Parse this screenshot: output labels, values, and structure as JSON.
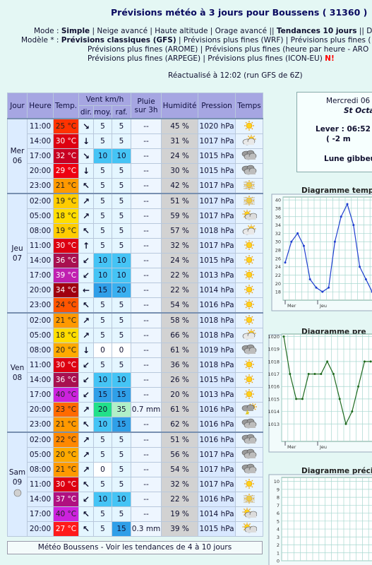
{
  "header": {
    "title": "Prévisions météo à 3 jours pour Boussens ( 31360 )",
    "mode": {
      "label": "Mode : ",
      "current": "Simple",
      "others": " | Neige avancé | Haute altitude | Orage avancé || ",
      "trend": "Tendances 10 jours",
      "rest": " || Di"
    },
    "model": {
      "label": "Modèle * : ",
      "current": "Prévisions classiques (GFS)",
      "others": " | Prévisions plus fines (WRF) | Prévisions plus fines (",
      "line2": "Prévisions plus fines (AROME) | Prévisions plus fines (heure par heure - ARO",
      "line3": "Prévisions plus fines (ARPEGE) | Prévisions plus fines (ICON-EU) ",
      "new": "N!"
    },
    "updated": "Réactualisé à 12:02 (run GFS de 6Z)"
  },
  "table": {
    "headers": {
      "day": "Jour",
      "time": "Heure",
      "temp": "Temp.",
      "wind": "Vent km/h",
      "dir": "dir.",
      "moy": "moy.",
      "raf": "raf.",
      "rain": "Pluie sur 3h",
      "hum": "Humidité",
      "pres": "Pression",
      "sky": "Temps"
    },
    "days": [
      {
        "day": "Mer",
        "date": "06",
        "rows": [
          {
            "time": "11:00",
            "temp": "25 °C",
            "dir": "↘",
            "moy": "5",
            "raf": "5",
            "rain": "--",
            "hum": "45 %",
            "pres": "1020 hPa",
            "colors": {
              "temp": "#ff3300",
              "moy": "#e4f6ff",
              "raf": "#e4f6ff"
            }
          },
          {
            "time": "14:00",
            "temp": "30 °C",
            "dir": "↓",
            "moy": "5",
            "raf": "5",
            "rain": "--",
            "hum": "31 %",
            "pres": "1017 hPa",
            "colors": {
              "temp": "#dd0011",
              "moy": "#e4f6ff",
              "raf": "#e4f6ff"
            }
          },
          {
            "time": "17:00",
            "temp": "32 °C",
            "dir": "↘",
            "moy": "10",
            "raf": "10",
            "rain": "--",
            "hum": "24 %",
            "pres": "1015 hPa",
            "colors": {
              "temp": "#c80022",
              "moy": "#45c4f5",
              "raf": "#45c4f5"
            }
          },
          {
            "time": "20:00",
            "temp": "29 °C",
            "dir": "↓",
            "moy": "5",
            "raf": "5",
            "rain": "--",
            "hum": "30 %",
            "pres": "1015 hPa",
            "colors": {
              "temp": "#ee0011",
              "moy": "#e4f6ff",
              "raf": "#e4f6ff"
            }
          },
          {
            "time": "23:00",
            "temp": "21 °C",
            "dir": "↖",
            "moy": "5",
            "raf": "5",
            "rain": "--",
            "hum": "42 %",
            "pres": "1017 hPa",
            "colors": {
              "temp": "#ff9900",
              "moy": "#e4f6ff",
              "raf": "#e4f6ff"
            }
          }
        ]
      },
      {
        "day": "Jeu",
        "date": "07",
        "rows": [
          {
            "time": "02:00",
            "temp": "19 °C",
            "dir": "↗",
            "moy": "5",
            "raf": "5",
            "rain": "--",
            "hum": "51 %",
            "pres": "1017 hPa",
            "colors": {
              "temp": "#ffcc00",
              "moy": "#e4f6ff",
              "raf": "#e4f6ff"
            }
          },
          {
            "time": "05:00",
            "temp": "18 °C",
            "dir": "↗",
            "moy": "5",
            "raf": "5",
            "rain": "--",
            "hum": "59 %",
            "pres": "1017 hPa",
            "colors": {
              "temp": "#ffdd00",
              "moy": "#e4f6ff",
              "raf": "#e4f6ff"
            }
          },
          {
            "time": "08:00",
            "temp": "19 °C",
            "dir": "↖",
            "moy": "5",
            "raf": "5",
            "rain": "--",
            "hum": "57 %",
            "pres": "1018 hPa",
            "colors": {
              "temp": "#ffcc00",
              "moy": "#e4f6ff",
              "raf": "#e4f6ff"
            }
          },
          {
            "time": "11:00",
            "temp": "30 °C",
            "dir": "↑",
            "moy": "5",
            "raf": "5",
            "rain": "--",
            "hum": "32 %",
            "pres": "1017 hPa",
            "colors": {
              "temp": "#dd0011",
              "moy": "#e4f6ff",
              "raf": "#e4f6ff"
            }
          },
          {
            "time": "14:00",
            "temp": "36 °C",
            "dir": "↙",
            "moy": "10",
            "raf": "10",
            "rain": "--",
            "hum": "24 %",
            "pres": "1015 hPa",
            "colors": {
              "temp": "#a81050",
              "moy": "#45c4f5",
              "raf": "#45c4f5"
            }
          },
          {
            "time": "17:00",
            "temp": "39 °C",
            "dir": "↙",
            "moy": "10",
            "raf": "10",
            "rain": "--",
            "hum": "22 %",
            "pres": "1013 hPa",
            "colors": {
              "temp": "#c020b0",
              "moy": "#45c4f5",
              "raf": "#45c4f5"
            }
          },
          {
            "time": "20:00",
            "temp": "34 °C",
            "dir": "←",
            "moy": "15",
            "raf": "20",
            "rain": "--",
            "hum": "22 %",
            "pres": "1014 hPa",
            "colors": {
              "temp": "#a00010",
              "moy": "#2f9fe8",
              "raf": "#3ab0f0"
            }
          },
          {
            "time": "23:00",
            "temp": "24 °C",
            "dir": "↖",
            "moy": "5",
            "raf": "5",
            "rain": "--",
            "hum": "54 %",
            "pres": "1016 hPa",
            "colors": {
              "temp": "#ff5500",
              "moy": "#e4f6ff",
              "raf": "#e4f6ff"
            }
          }
        ]
      },
      {
        "day": "Ven",
        "date": "08",
        "rows": [
          {
            "time": "02:00",
            "temp": "21 °C",
            "dir": "↗",
            "moy": "5",
            "raf": "5",
            "rain": "--",
            "hum": "58 %",
            "pres": "1018 hPa",
            "colors": {
              "temp": "#ff9900",
              "moy": "#e4f6ff",
              "raf": "#e4f6ff"
            }
          },
          {
            "time": "05:00",
            "temp": "18 °C",
            "dir": "↗",
            "moy": "5",
            "raf": "5",
            "rain": "--",
            "hum": "66 %",
            "pres": "1018 hPa",
            "colors": {
              "temp": "#ffdd00",
              "moy": "#e4f6ff",
              "raf": "#e4f6ff"
            }
          },
          {
            "time": "08:00",
            "temp": "20 °C",
            "dir": "↓",
            "moy": "0",
            "raf": "0",
            "rain": "--",
            "hum": "61 %",
            "pres": "1019 hPa",
            "colors": {
              "temp": "#ffaa00",
              "moy": "#ffffff",
              "raf": "#ffffff"
            }
          },
          {
            "time": "11:00",
            "temp": "30 °C",
            "dir": "↙",
            "moy": "5",
            "raf": "5",
            "rain": "--",
            "hum": "36 %",
            "pres": "1018 hPa",
            "colors": {
              "temp": "#dd0011",
              "moy": "#e4f6ff",
              "raf": "#e4f6ff"
            }
          },
          {
            "time": "14:00",
            "temp": "36 °C",
            "dir": "↙",
            "moy": "10",
            "raf": "10",
            "rain": "--",
            "hum": "26 %",
            "pres": "1015 hPa",
            "colors": {
              "temp": "#a81050",
              "moy": "#45c4f5",
              "raf": "#45c4f5"
            }
          },
          {
            "time": "17:00",
            "temp": "40 °C",
            "dir": "↙",
            "moy": "15",
            "raf": "15",
            "rain": "--",
            "hum": "20 %",
            "pres": "1013 hPa",
            "colors": {
              "temp": "#cc22dd",
              "moy": "#2f9fe8",
              "raf": "#2f9fe8"
            }
          },
          {
            "time": "20:00",
            "temp": "23 °C",
            "dir": "↗",
            "moy": "20",
            "raf": "35",
            "rain": "0.7 mm",
            "hum": "61 %",
            "pres": "1016 hPa",
            "colors": {
              "temp": "#ff6a00",
              "moy": "#22e08a",
              "raf": "#b0f0c8"
            }
          },
          {
            "time": "23:00",
            "temp": "21 °C",
            "dir": "↖",
            "moy": "10",
            "raf": "15",
            "rain": "--",
            "hum": "62 %",
            "pres": "1016 hPa",
            "colors": {
              "temp": "#ff9900",
              "moy": "#45c4f5",
              "raf": "#2f9fe8"
            }
          }
        ]
      },
      {
        "day": "Sam",
        "date": "09",
        "rows": [
          {
            "time": "02:00",
            "temp": "22 °C",
            "dir": "↗",
            "moy": "5",
            "raf": "5",
            "rain": "--",
            "hum": "51 %",
            "pres": "1016 hPa",
            "colors": {
              "temp": "#ff8800",
              "moy": "#e4f6ff",
              "raf": "#e4f6ff"
            }
          },
          {
            "time": "05:00",
            "temp": "20 °C",
            "dir": "↗",
            "moy": "5",
            "raf": "5",
            "rain": "--",
            "hum": "56 %",
            "pres": "1017 hPa",
            "colors": {
              "temp": "#ffaa00",
              "moy": "#e4f6ff",
              "raf": "#e4f6ff"
            }
          },
          {
            "time": "08:00",
            "temp": "21 °C",
            "dir": "↗",
            "moy": "0",
            "raf": "5",
            "rain": "--",
            "hum": "54 %",
            "pres": "1017 hPa",
            "colors": {
              "temp": "#ff9900",
              "moy": "#ffffff",
              "raf": "#e4f6ff"
            }
          },
          {
            "time": "11:00",
            "temp": "30 °C",
            "dir": "↖",
            "moy": "5",
            "raf": "5",
            "rain": "--",
            "hum": "32 %",
            "pres": "1017 hPa",
            "colors": {
              "temp": "#dd0011",
              "moy": "#e4f6ff",
              "raf": "#e4f6ff"
            }
          },
          {
            "time": "14:00",
            "temp": "37 °C",
            "dir": "↙",
            "moy": "10",
            "raf": "10",
            "rain": "--",
            "hum": "22 %",
            "pres": "1016 hPa",
            "colors": {
              "temp": "#b01080",
              "moy": "#45c4f5",
              "raf": "#45c4f5"
            }
          },
          {
            "time": "17:00",
            "temp": "40 °C",
            "dir": "↖",
            "moy": "5",
            "raf": "5",
            "rain": "--",
            "hum": "19 %",
            "pres": "1014 hPa",
            "colors": {
              "temp": "#cc22dd",
              "moy": "#e4f6ff",
              "raf": "#e4f6ff"
            }
          },
          {
            "time": "20:00",
            "temp": "27 °C",
            "dir": "↖",
            "moy": "5",
            "raf": "15",
            "rain": "0.3 mm",
            "hum": "39 %",
            "pres": "1015 hPa",
            "colors": {
              "temp": "#ff1a1a",
              "moy": "#e4f6ff",
              "raf": "#2f9fe8"
            }
          }
        ]
      }
    ]
  },
  "info": {
    "date": "Mercredi 06",
    "saint": "St Octa",
    "sunrise": "Lever : 06:52",
    "sun_change": "( -2 m",
    "moon": "Lune gibbeu"
  },
  "charts": [
    {
      "title": "Diagramme temp",
      "ylim": [
        16,
        40.7
      ],
      "yticks": [
        18,
        20,
        22,
        24,
        26,
        28,
        30,
        32,
        34,
        36,
        38,
        40
      ],
      "x_labels": [
        "Mer",
        "Jeu"
      ],
      "values": [
        25,
        30,
        32,
        29,
        21,
        19,
        18,
        19,
        30,
        36,
        39,
        34,
        24,
        21,
        18
      ],
      "color": "#1f3fcf"
    },
    {
      "title": "Diagramme pre",
      "ylim": [
        1011.6,
        1020.2
      ],
      "yticks": [
        1013,
        1014,
        1015,
        1016,
        1017,
        1018,
        1019,
        1020
      ],
      "x_labels": [
        "Mer",
        "Jeu"
      ],
      "values": [
        1020,
        1017,
        1015,
        1015,
        1017,
        1017,
        1017,
        1018,
        1017,
        1015,
        1013,
        1014,
        1016,
        1018,
        1018
      ],
      "color": "#1f6a1f"
    },
    {
      "title": "Diagramme précip",
      "ylim": [
        0,
        10.5
      ],
      "yticks": [
        0,
        1,
        2,
        3,
        4,
        5,
        6,
        7,
        8,
        9,
        10
      ]
    }
  ],
  "footer": "Météo Boussens - Voir les tendances de 4 à 10 jours"
}
